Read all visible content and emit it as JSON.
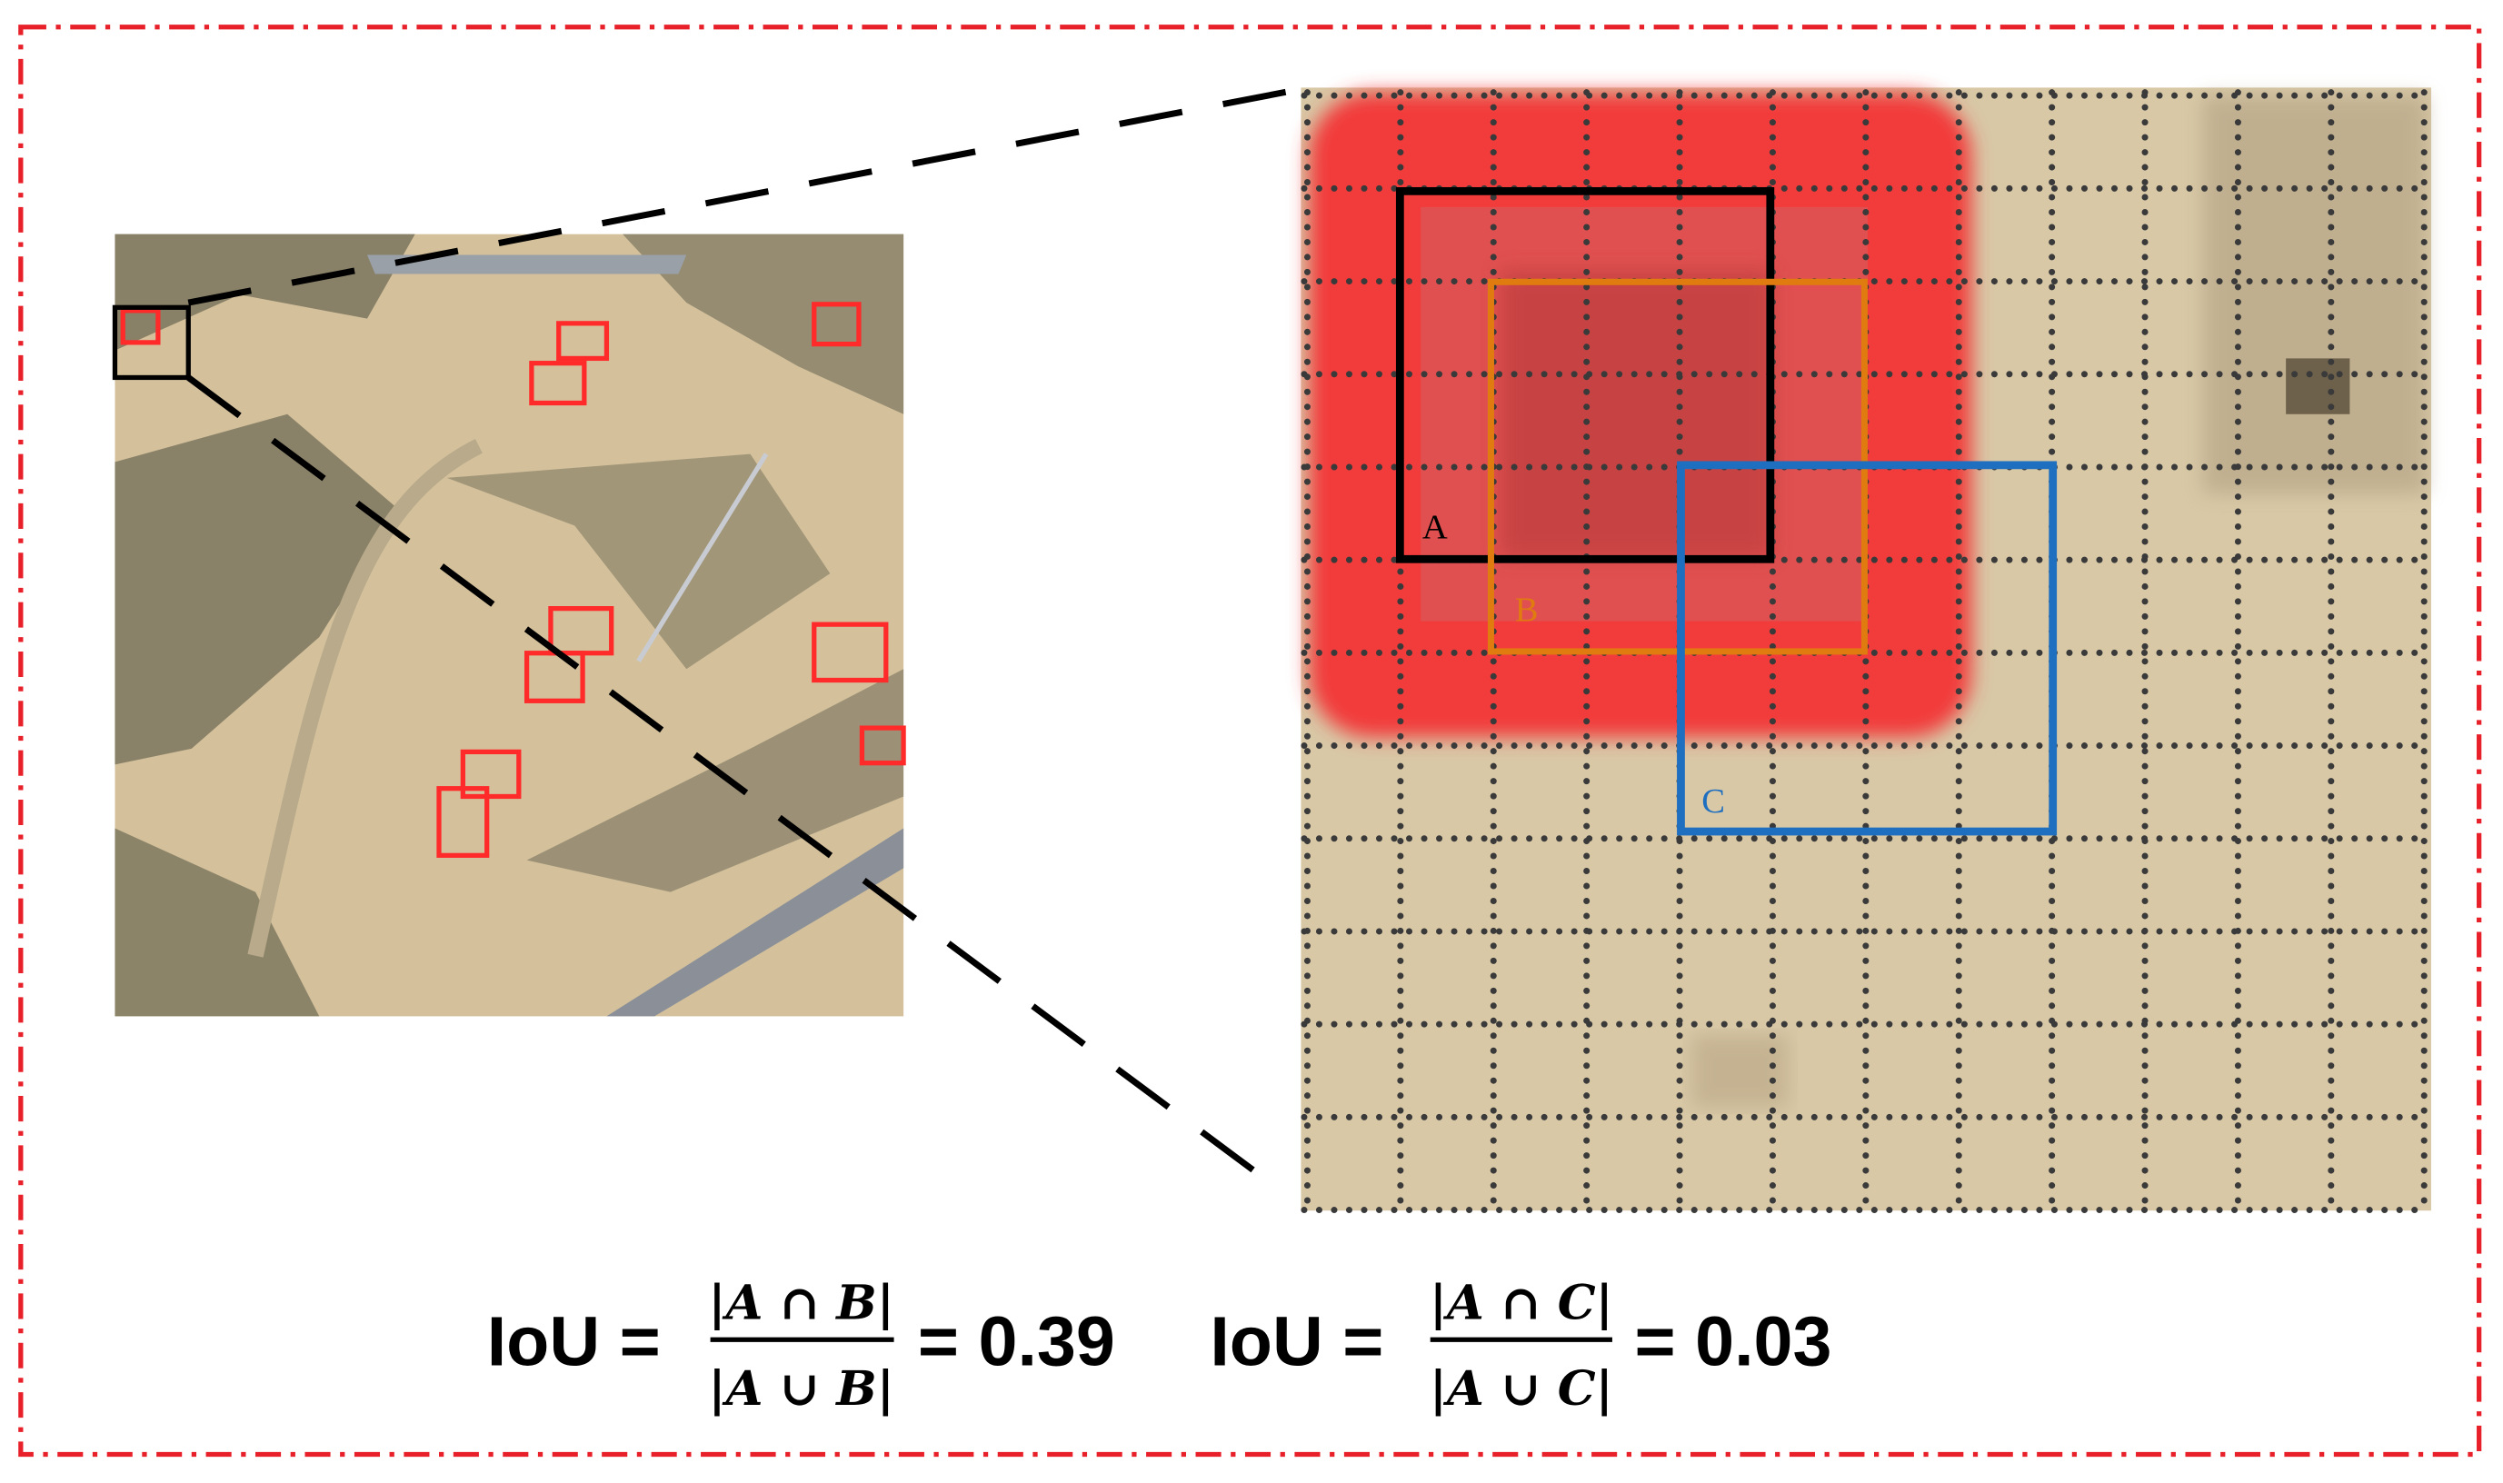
{
  "boxes": [
    {
      "label": "A"
    },
    {
      "label": "B"
    },
    {
      "label": "C"
    }
  ],
  "formulas": [
    {
      "lhs": "IoU =",
      "numerator": "|A ∩ B|",
      "denominator": "|A ∪ B|",
      "result": "= 0.39"
    },
    {
      "lhs": "IoU =",
      "numerator": "|A ∩ C|",
      "denominator": "|A ∪ C|",
      "result": "= 0.03"
    }
  ]
}
